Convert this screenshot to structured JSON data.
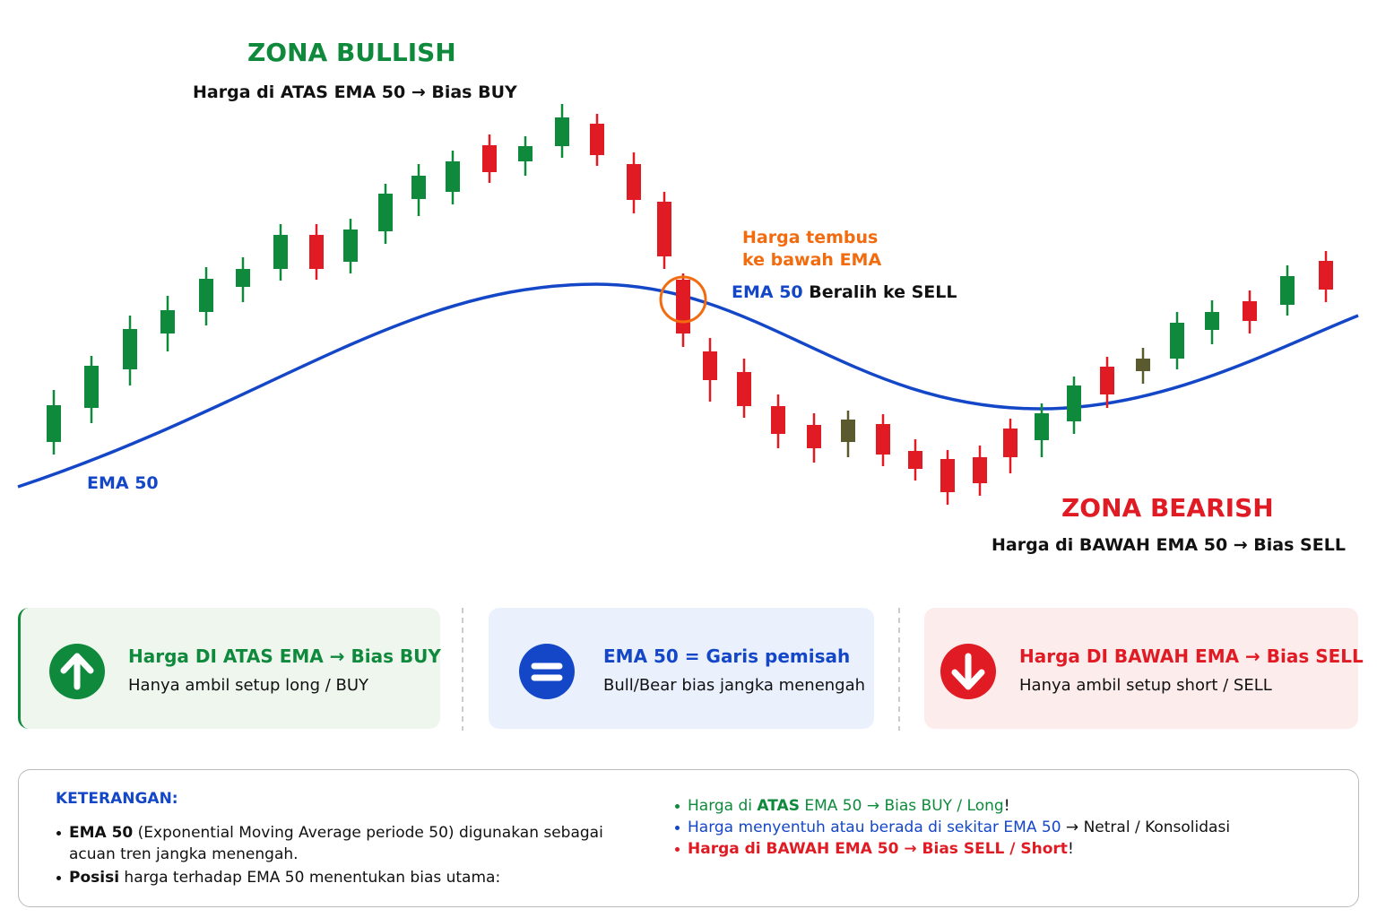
{
  "bullish": {
    "title": "ZONA BULLISH",
    "subtitle": "Harga di ATAS EMA 50 → Bias BUY"
  },
  "bearish": {
    "title": "ZONA BEARISH",
    "subtitle": "Harga di BAWAH EMA 50 → Bias SELL"
  },
  "ema_label": "EMA 50",
  "callout": {
    "lines": [
      "Harga tembus",
      "ke bawah EMA"
    ]
  },
  "switch_label": {
    "ema": "EMA 50",
    "text": " Beralih ke SELL"
  },
  "cards": [
    {
      "title": "Harga DI ATAS EMA → Bias BUY",
      "text": "Hanya ambil setup long / BUY"
    },
    {
      "title": "EMA 50 = Garis pemisah",
      "text": "Bull/Bear bias jangka menengah"
    },
    {
      "title": "Harga DI BAWAH EMA → Bias SELL",
      "text": "Hanya ambil setup short / SELL"
    }
  ],
  "legend": {
    "heading": "KETERANGAN:",
    "left": [
      [
        {
          "text": "EMA 50",
          "bold": true
        },
        {
          "text": " (Exponential Moving Average periode 50) digunakan sebagai acuan tren jangka menengah."
        }
      ],
      [
        {
          "text": "Posisi",
          "bold": true
        },
        {
          "text": " harga terhadap EMA 50 menentukan bias utama:"
        }
      ]
    ],
    "right": [
      [
        {
          "text": "Harga di ",
          "color": "green"
        },
        {
          "text": "ATAS",
          "bold": true,
          "color": "green"
        },
        {
          "text": " EMA 50 → Bias BUY / Long",
          "color": "green"
        },
        {
          "text": "!"
        }
      ],
      [
        {
          "text": "Harga menyentuh atau berada di sekitar EMA 50",
          "color": "blue"
        },
        {
          "text": " → Netral / Konsolidasi"
        }
      ],
      [
        {
          "text": "Harga di BAWAH EMA 50 → Bias SELL / Short",
          "bold": true,
          "color": "red"
        },
        {
          "text": "!"
        }
      ]
    ]
  }
}
